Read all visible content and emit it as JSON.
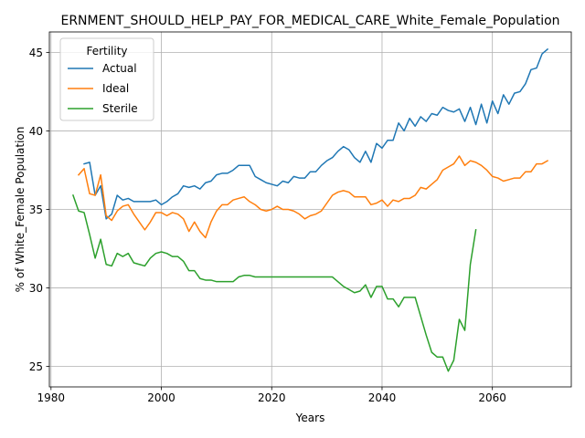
{
  "chart_data": {
    "type": "line",
    "title": "ERNMENT_SHOULD_HELP_PAY_FOR_MEDICAL_CARE_White_Female_Population",
    "xlabel": "Years",
    "ylabel": "% of White_Female Population",
    "xlim": [
      1979.7,
      2074.3
    ],
    "ylim": [
      23.7,
      46.3
    ],
    "xticks": [
      1980,
      2000,
      2020,
      2040,
      2060
    ],
    "yticks": [
      25,
      30,
      35,
      40,
      45
    ],
    "grid": true,
    "legend": {
      "title": "Fertility",
      "position": "top-left"
    },
    "colors": {
      "Actual": "#1f77b4",
      "Ideal": "#ff7f0e",
      "Sterile": "#2ca02c"
    },
    "series": [
      {
        "name": "Actual",
        "x": [
          1986,
          1987,
          1988,
          1989,
          1990,
          1991,
          1992,
          1993,
          1994,
          1995,
          1996,
          1997,
          1998,
          1999,
          2000,
          2001,
          2002,
          2003,
          2004,
          2005,
          2006,
          2007,
          2008,
          2009,
          2010,
          2011,
          2012,
          2013,
          2014,
          2015,
          2016,
          2017,
          2018,
          2019,
          2020,
          2021,
          2022,
          2023,
          2024,
          2025,
          2026,
          2027,
          2028,
          2029,
          2030,
          2031,
          2032,
          2033,
          2034,
          2035,
          2036,
          2037,
          2038,
          2039,
          2040,
          2041,
          2042,
          2043,
          2044,
          2045,
          2046,
          2047,
          2048,
          2049,
          2050,
          2051,
          2052,
          2053,
          2054,
          2055,
          2056,
          2057,
          2058,
          2059,
          2060,
          2061,
          2062,
          2063,
          2064,
          2065,
          2066,
          2067,
          2068,
          2069,
          2070
        ],
        "values": [
          37.9,
          38.0,
          35.9,
          36.5,
          34.4,
          34.7,
          35.9,
          35.6,
          35.7,
          35.5,
          35.5,
          35.5,
          35.5,
          35.6,
          35.3,
          35.5,
          35.8,
          36.0,
          36.5,
          36.4,
          36.5,
          36.3,
          36.7,
          36.8,
          37.2,
          37.3,
          37.3,
          37.5,
          37.8,
          37.8,
          37.8,
          37.1,
          36.9,
          36.7,
          36.6,
          36.5,
          36.8,
          36.7,
          37.1,
          37.0,
          37.0,
          37.4,
          37.4,
          37.8,
          38.1,
          38.3,
          38.7,
          39.0,
          38.8,
          38.3,
          38.0,
          38.7,
          38.0,
          39.2,
          38.9,
          39.4,
          39.4,
          40.5,
          40.0,
          40.8,
          40.3,
          40.9,
          40.6,
          41.1,
          41.0,
          41.5,
          41.3,
          41.2,
          41.4,
          40.6,
          41.5,
          40.4,
          41.7,
          40.5,
          41.9,
          41.1,
          42.3,
          41.7,
          42.4,
          42.5,
          43.0,
          43.9,
          44.0,
          44.9,
          45.2
        ]
      },
      {
        "name": "Ideal",
        "x": [
          1985,
          1986,
          1987,
          1988,
          1989,
          1990,
          1991,
          1992,
          1993,
          1994,
          1995,
          1996,
          1997,
          1998,
          1999,
          2000,
          2001,
          2002,
          2003,
          2004,
          2005,
          2006,
          2007,
          2008,
          2009,
          2010,
          2011,
          2012,
          2013,
          2014,
          2015,
          2016,
          2017,
          2018,
          2019,
          2020,
          2021,
          2022,
          2023,
          2024,
          2025,
          2026,
          2027,
          2028,
          2029,
          2030,
          2031,
          2032,
          2033,
          2034,
          2035,
          2036,
          2037,
          2038,
          2039,
          2040,
          2041,
          2042,
          2043,
          2044,
          2045,
          2046,
          2047,
          2048,
          2049,
          2050,
          2051,
          2052,
          2053,
          2054,
          2055,
          2056,
          2057,
          2058,
          2059,
          2060,
          2061,
          2062,
          2063,
          2064,
          2065,
          2066,
          2067,
          2068,
          2069,
          2070
        ],
        "values": [
          37.2,
          37.6,
          36.0,
          35.9,
          37.2,
          34.6,
          34.3,
          34.9,
          35.2,
          35.3,
          34.7,
          34.2,
          33.7,
          34.2,
          34.8,
          34.8,
          34.6,
          34.8,
          34.7,
          34.4,
          33.6,
          34.2,
          33.6,
          33.2,
          34.2,
          34.9,
          35.3,
          35.3,
          35.6,
          35.7,
          35.8,
          35.5,
          35.3,
          35.0,
          34.9,
          35.0,
          35.2,
          35.0,
          35.0,
          34.9,
          34.7,
          34.4,
          34.6,
          34.7,
          34.9,
          35.4,
          35.9,
          36.1,
          36.2,
          36.1,
          35.8,
          35.8,
          35.8,
          35.3,
          35.4,
          35.6,
          35.2,
          35.6,
          35.5,
          35.7,
          35.7,
          35.9,
          36.4,
          36.3,
          36.6,
          36.9,
          37.5,
          37.7,
          37.9,
          38.4,
          37.8,
          38.1,
          38.0,
          37.8,
          37.5,
          37.1,
          37.0,
          36.8,
          36.9,
          37.0,
          37.0,
          37.4,
          37.4,
          37.9,
          37.9,
          38.1
        ]
      },
      {
        "name": "Sterile",
        "x": [
          1984,
          1985,
          1986,
          1987,
          1988,
          1989,
          1990,
          1991,
          1992,
          1993,
          1994,
          1995,
          1996,
          1997,
          1998,
          1999,
          2000,
          2001,
          2002,
          2003,
          2004,
          2005,
          2006,
          2007,
          2008,
          2009,
          2010,
          2011,
          2012,
          2013,
          2014,
          2015,
          2016,
          2017,
          2018,
          2019,
          2020,
          2021,
          2022,
          2023,
          2024,
          2025,
          2026,
          2027,
          2028,
          2029,
          2030,
          2031,
          2032,
          2033,
          2034,
          2035,
          2036,
          2037,
          2038,
          2039,
          2040,
          2041,
          2042,
          2043,
          2044,
          2045,
          2046,
          2047,
          2048,
          2049,
          2050,
          2051,
          2052,
          2053,
          2054,
          2055,
          2056,
          2057
        ],
        "values": [
          35.9,
          34.9,
          34.8,
          33.4,
          31.9,
          33.1,
          31.5,
          31.4,
          32.2,
          32.0,
          32.2,
          31.6,
          31.5,
          31.4,
          31.9,
          32.2,
          32.3,
          32.2,
          32.0,
          32.0,
          31.7,
          31.1,
          31.1,
          30.6,
          30.5,
          30.5,
          30.4,
          30.4,
          30.4,
          30.4,
          30.7,
          30.8,
          30.8,
          30.7,
          30.7,
          30.7,
          30.7,
          30.7,
          30.7,
          30.7,
          30.7,
          30.7,
          30.7,
          30.7,
          30.7,
          30.7,
          30.7,
          30.7,
          30.4,
          30.1,
          29.9,
          29.7,
          29.8,
          30.2,
          29.4,
          30.1,
          30.1,
          29.3,
          29.3,
          28.8,
          29.4,
          29.4,
          29.4,
          28.2,
          27.0,
          25.9,
          25.6,
          25.6,
          24.7,
          25.4,
          28.0,
          27.3,
          31.5,
          33.7
        ]
      }
    ]
  }
}
